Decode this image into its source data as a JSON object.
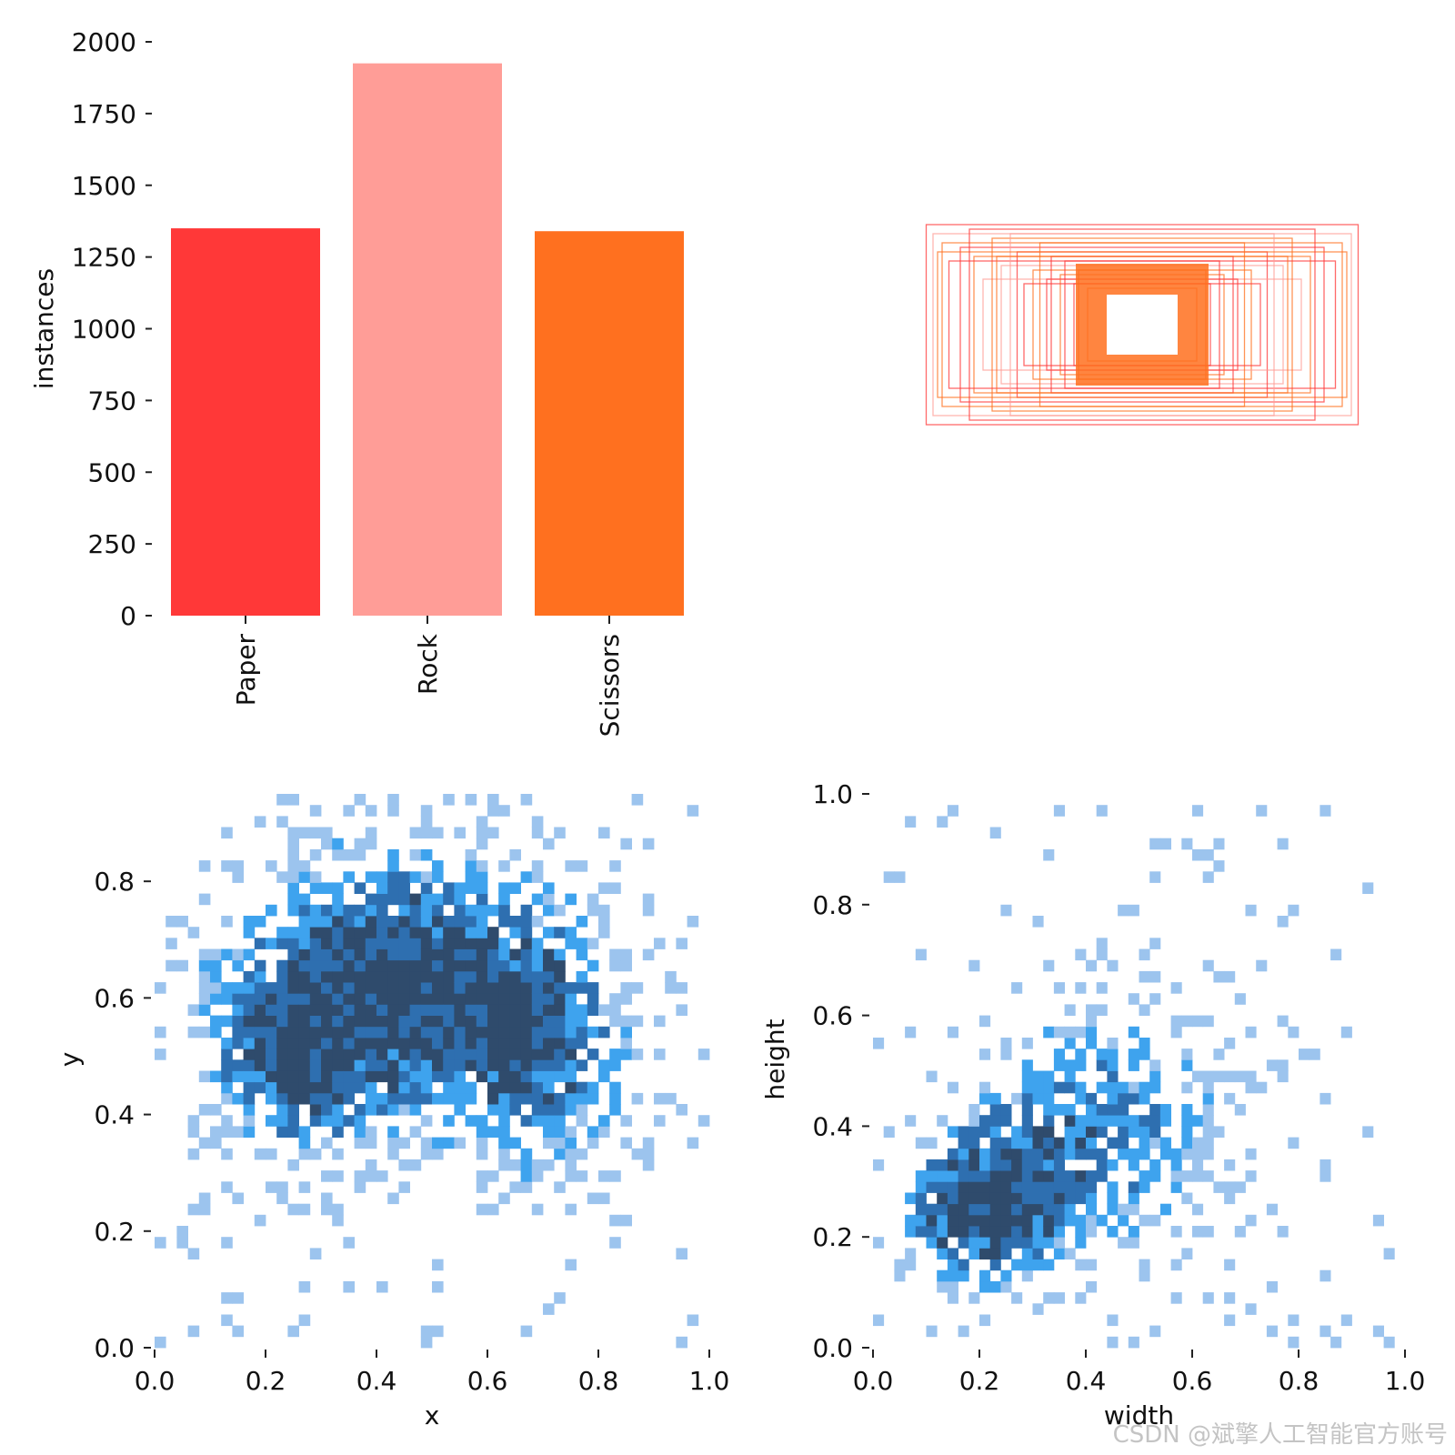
{
  "colors": {
    "paper": "#ff3838",
    "rock": "#ff9d97",
    "scissors": "#ff701f",
    "hist_light": "#9cc4ee",
    "hist_mid": "#3ea3ee",
    "hist_dark": "#2e6fb0",
    "hist_darkest": "#2f4b6c"
  },
  "watermark": "CSDN @斌擎人工智能官方账号",
  "chart_data": [
    {
      "type": "bar",
      "panel": "top-left",
      "categories": [
        "Paper",
        "Rock",
        "Scissors"
      ],
      "values": [
        1350,
        1925,
        1340
      ],
      "ylabel": "instances",
      "xlabel": "",
      "ylim": [
        0,
        2000
      ],
      "yticks": [
        "0",
        "250",
        "500",
        "750",
        "1000",
        "1250",
        "1500",
        "1750",
        "2000"
      ]
    },
    {
      "type": "boxes",
      "panel": "top-right",
      "description_free": true,
      "boxes": [
        {
          "w": 0.95,
          "h": 0.44,
          "color": "paper"
        },
        {
          "w": 0.92,
          "h": 0.4,
          "color": "rock"
        },
        {
          "w": 0.88,
          "h": 0.36,
          "color": "scissors"
        },
        {
          "w": 0.8,
          "h": 0.34,
          "color": "paper"
        },
        {
          "w": 0.74,
          "h": 0.3,
          "color": "scissors"
        },
        {
          "w": 0.62,
          "h": 0.26,
          "color": "rock"
        },
        {
          "w": 0.55,
          "h": 0.32,
          "color": "paper"
        },
        {
          "w": 0.48,
          "h": 0.24,
          "color": "scissors"
        },
        {
          "w": 0.4,
          "h": 0.3,
          "color": "paper"
        },
        {
          "w": 0.36,
          "h": 0.22,
          "color": "scissors"
        },
        {
          "w": 0.3,
          "h": 0.18,
          "color": "paper"
        },
        {
          "w": 0.24,
          "h": 0.16,
          "color": "scissors"
        },
        {
          "w": 0.7,
          "h": 0.2,
          "color": "rock"
        },
        {
          "w": 0.66,
          "h": 0.38,
          "color": "scissors"
        },
        {
          "w": 0.85,
          "h": 0.28,
          "color": "paper"
        },
        {
          "w": 0.58,
          "h": 0.4,
          "color": "rock"
        },
        {
          "w": 0.45,
          "h": 0.36,
          "color": "scissors"
        },
        {
          "w": 0.34,
          "h": 0.28,
          "color": "paper"
        },
        {
          "w": 0.9,
          "h": 0.32,
          "color": "scissors"
        },
        {
          "w": 0.52,
          "h": 0.18,
          "color": "paper"
        },
        {
          "w": 0.28,
          "h": 0.24,
          "color": "scissors"
        },
        {
          "w": 0.76,
          "h": 0.42,
          "color": "paper"
        },
        {
          "w": 0.64,
          "h": 0.3,
          "color": "scissors"
        },
        {
          "w": 0.42,
          "h": 0.2,
          "color": "paper"
        }
      ]
    },
    {
      "type": "heatmap",
      "panel": "bottom-left",
      "xlabel": "x",
      "ylabel": "y",
      "xlim": [
        0.0,
        1.0
      ],
      "ylim": [
        0.0,
        0.95
      ],
      "xticks": [
        "0.0",
        "0.2",
        "0.4",
        "0.6",
        "0.8",
        "1.0"
      ],
      "yticks": [
        "0.0",
        "0.2",
        "0.4",
        "0.6",
        "0.8"
      ],
      "bins": 50,
      "density_centers": [
        {
          "x": 0.45,
          "y": 0.62,
          "sx": 0.2,
          "sy": 0.16,
          "weight": 1.0
        },
        {
          "x": 0.25,
          "y": 0.5,
          "sx": 0.1,
          "sy": 0.12,
          "weight": 0.6
        },
        {
          "x": 0.7,
          "y": 0.5,
          "sx": 0.1,
          "sy": 0.14,
          "weight": 0.6
        }
      ]
    },
    {
      "type": "heatmap",
      "panel": "bottom-right",
      "xlabel": "width",
      "ylabel": "height",
      "xlim": [
        0.0,
        1.0
      ],
      "ylim": [
        0.0,
        1.0
      ],
      "xticks": [
        "0.0",
        "0.2",
        "0.4",
        "0.6",
        "0.8",
        "1.0"
      ],
      "yticks": [
        "0.0",
        "0.2",
        "0.4",
        "0.6",
        "0.8",
        "1.0"
      ],
      "bins": 50,
      "density_centers": [
        {
          "x": 0.2,
          "y": 0.25,
          "sx": 0.1,
          "sy": 0.09,
          "weight": 1.0
        },
        {
          "x": 0.42,
          "y": 0.4,
          "sx": 0.17,
          "sy": 0.15,
          "weight": 0.65
        }
      ]
    }
  ]
}
